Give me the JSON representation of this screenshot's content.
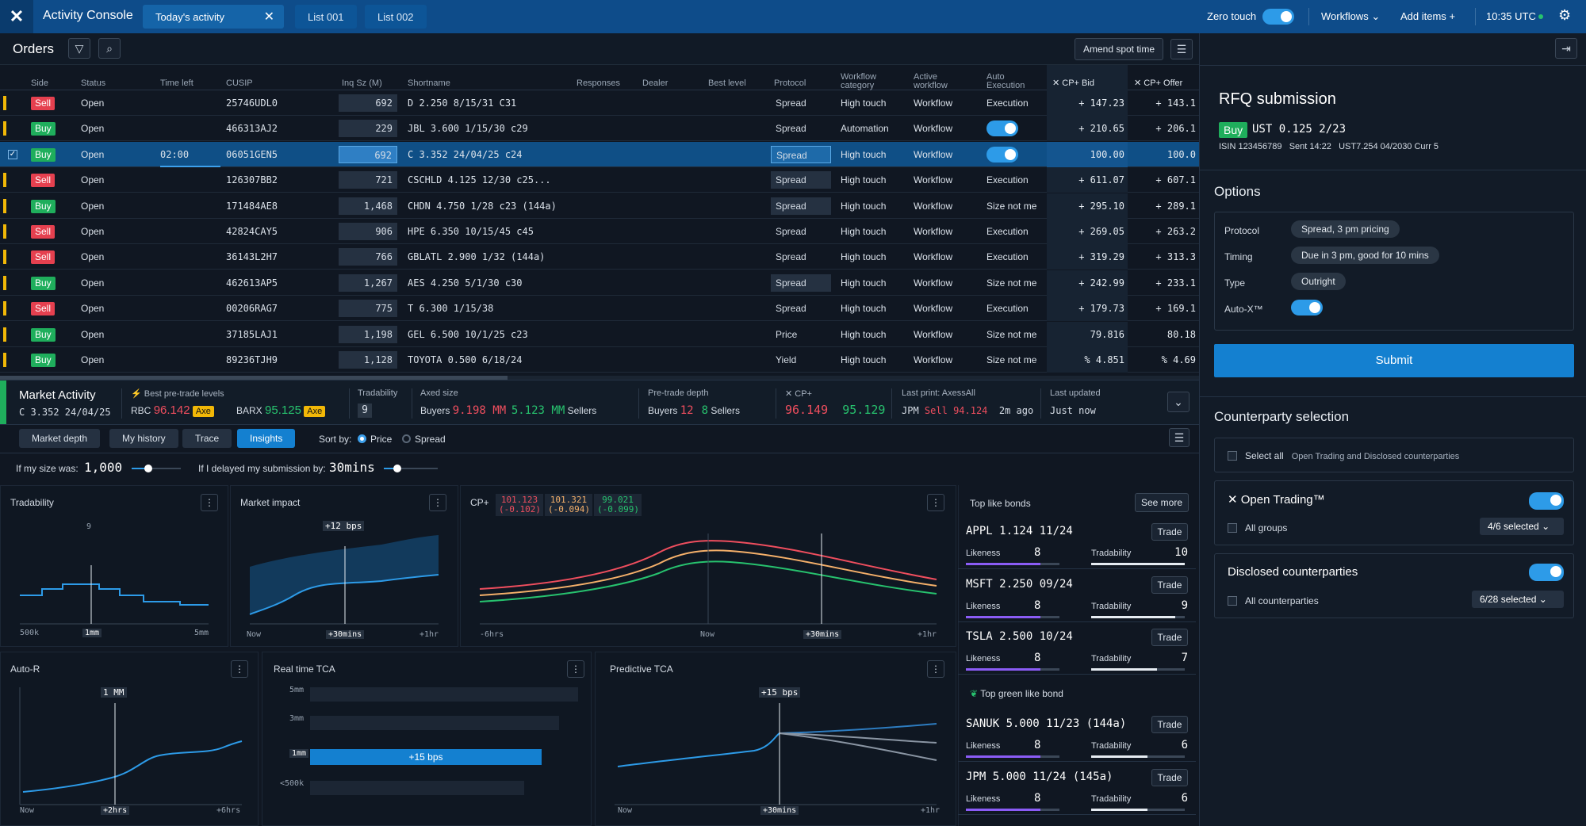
{
  "app": {
    "title": "Activity Console",
    "tabs": [
      {
        "label": "Today's activity"
      },
      {
        "label": "List 001"
      },
      {
        "label": "List 002"
      }
    ],
    "zero_touch": "Zero touch",
    "workflows": "Workflows",
    "add_items": "Add items",
    "time": "10:35 UTC"
  },
  "orders": {
    "title": "Orders",
    "amend": "Amend spot time",
    "columns": [
      "Side",
      "Status",
      "Time left",
      "CUSIP",
      "Inq Sz (M)",
      "Shortname",
      "Responses",
      "Dealer",
      "Best level",
      "Protocol",
      "Workflow category",
      "Active workflow",
      "Auto Execution",
      "CP+ Bid",
      "CP+ Offer"
    ],
    "rows": [
      {
        "side": "Sell",
        "status": "Open",
        "time_left": "",
        "cusip": "25746UDL0",
        "qty": "692",
        "shortname": "D 2.250 8/15/31 C31",
        "protocol": "Spread",
        "proto_boxed": false,
        "category": "High touch",
        "workflow": "Workflow",
        "auto": "Execution",
        "bid": "+ 147.23",
        "offer": "+ 143.1"
      },
      {
        "side": "Buy",
        "status": "Open",
        "time_left": "",
        "cusip": "466313AJ2",
        "qty": "229",
        "shortname": "JBL 3.600 1/15/30 c29",
        "protocol": "Spread",
        "proto_boxed": false,
        "category": "Automation",
        "workflow": "Workflow",
        "auto": "",
        "bid": "+ 210.65",
        "offer": "+ 206.1"
      },
      {
        "side": "Buy",
        "status": "Open",
        "time_left": "02:00",
        "cusip": "06051GEN5",
        "qty": "692",
        "shortname": "C 3.352 24/04/25 c24",
        "protocol": "Spread",
        "proto_boxed": true,
        "category": "High touch",
        "workflow": "Workflow",
        "auto": "",
        "bid": "100.00",
        "offer": "100.0"
      },
      {
        "side": "Sell",
        "status": "Open",
        "time_left": "",
        "cusip": "126307BB2",
        "qty": "721",
        "shortname": "CSCHLD 4.125 12/30 c25...",
        "protocol": "Spread",
        "proto_boxed": true,
        "category": "High touch",
        "workflow": "Workflow",
        "auto": "Execution",
        "bid": "+ 611.07",
        "offer": "+ 607.1"
      },
      {
        "side": "Buy",
        "status": "Open",
        "time_left": "",
        "cusip": "171484AE8",
        "qty": "1,468",
        "shortname": "CHDN 4.750 1/28 c23 (144a)",
        "protocol": "Spread",
        "proto_boxed": true,
        "category": "High touch",
        "workflow": "Workflow",
        "auto": "Size not me",
        "bid": "+ 295.10",
        "offer": "+ 289.1"
      },
      {
        "side": "Sell",
        "status": "Open",
        "time_left": "",
        "cusip": "42824CAY5",
        "qty": "906",
        "shortname": "HPE 6.350 10/15/45 c45",
        "protocol": "Spread",
        "proto_boxed": false,
        "category": "High touch",
        "workflow": "Workflow",
        "auto": "Execution",
        "bid": "+ 269.05",
        "offer": "+ 263.2"
      },
      {
        "side": "Sell",
        "status": "Open",
        "time_left": "",
        "cusip": "36143L2H7",
        "qty": "766",
        "shortname": "GBLATL 2.900 1/32 (144a)",
        "protocol": "Spread",
        "proto_boxed": false,
        "category": "High touch",
        "workflow": "Workflow",
        "auto": "Execution",
        "bid": "+ 319.29",
        "offer": "+ 313.3"
      },
      {
        "side": "Buy",
        "status": "Open",
        "time_left": "",
        "cusip": "462613AP5",
        "qty": "1,267",
        "shortname": "AES 4.250 5/1/30 c30",
        "protocol": "Spread",
        "proto_boxed": true,
        "category": "High touch",
        "workflow": "Workflow",
        "auto": "Size not me",
        "bid": "+ 242.99",
        "offer": "+ 233.1"
      },
      {
        "side": "Sell",
        "status": "Open",
        "time_left": "",
        "cusip": "00206RAG7",
        "qty": "775",
        "shortname": "T 6.300 1/15/38",
        "protocol": "Spread",
        "proto_boxed": false,
        "category": "High touch",
        "workflow": "Workflow",
        "auto": "Execution",
        "bid": "+ 179.73",
        "offer": "+ 169.1"
      },
      {
        "side": "Buy",
        "status": "Open",
        "time_left": "",
        "cusip": "37185LAJ1",
        "qty": "1,198",
        "shortname": "GEL 6.500 10/1/25 c23",
        "protocol": "Price",
        "proto_boxed": false,
        "category": "High touch",
        "workflow": "Workflow",
        "auto": "Size not me",
        "bid": "79.816",
        "offer": "80.18"
      },
      {
        "side": "Buy",
        "status": "Open",
        "time_left": "",
        "cusip": "89236TJH9",
        "qty": "1,128",
        "shortname": "TOYOTA 0.500 6/18/24",
        "protocol": "Yield",
        "proto_boxed": false,
        "category": "High touch",
        "workflow": "Workflow",
        "auto": "Size not me",
        "bid": "% 4.851",
        "offer": "% 4.69"
      }
    ]
  },
  "market": {
    "title": "Market Activity",
    "bond": "C 3.352 24/04/25",
    "best_label": "Best pre-trade levels",
    "rbc": "RBC",
    "rbc_val": "96.142",
    "barx": "BARX",
    "barx_val": "95.125",
    "axe": "Axe",
    "trad_label": "Tradability",
    "trad_val": "9",
    "axed_label": "Axed size",
    "buyers": "Buyers",
    "buy_amt": "9.198 MM",
    "sell_amt": "5.123 MM",
    "sellers": "Sellers",
    "depth_label": "Pre-trade depth",
    "depth_buy": "12",
    "depth_sell": "8",
    "cp_label": "CP+",
    "cp_bid": "96.149",
    "cp_offer": "95.129",
    "last_label": "Last print: AxessAll",
    "last_jpm": "JPM",
    "last_side": "Sell",
    "last_px": "94.124",
    "last_ago": "2m ago",
    "upd_label": "Last updated",
    "upd_val": "Just now"
  },
  "analysis": {
    "tabs": [
      "Market depth",
      "My history",
      "Trace",
      "Insights"
    ],
    "sort_by": "Sort by:",
    "sort_price": "Price",
    "sort_spread": "Spread",
    "size_label": "If my size was:",
    "size_val": "1,000",
    "delay_label": "If I delayed my submission by:",
    "delay_val": "30mins"
  },
  "charts": {
    "tradability": {
      "title": "Tradability",
      "marker": "9",
      "ticks": [
        "500k",
        "1mm",
        "5mm"
      ]
    },
    "impact": {
      "title": "Market impact",
      "marker": "+12 bps",
      "ticks": [
        "Now",
        "+30mins",
        "+1hr"
      ]
    },
    "cp": {
      "title": "CP+",
      "legend": [
        {
          "v": "101.123",
          "d": "(-0.102)"
        },
        {
          "v": "101.321",
          "d": "(-0.094)"
        },
        {
          "v": "99.021",
          "d": "(-0.099)"
        }
      ],
      "ticks": [
        "-6hrs",
        "Now",
        "+30mins",
        "+1hr"
      ]
    },
    "autor": {
      "title": "Auto-R",
      "marker": "1 MM",
      "ticks": [
        "Now",
        "+2hrs",
        "+6hrs"
      ]
    },
    "tca": {
      "title": "Real time TCA",
      "rows": [
        "5mm",
        "3mm",
        "1mm",
        "<500k"
      ],
      "bar": "+15 bps"
    },
    "ptca": {
      "title": "Predictive TCA",
      "marker": "+15 bps",
      "ticks": [
        "Now",
        "+30mins",
        "+1hr"
      ]
    },
    "colors": {
      "red": "#ef4e5e",
      "orange": "#f5b06a",
      "green": "#27c26e",
      "blue": "#2d9be8"
    }
  },
  "likes": {
    "title": "Top like bonds",
    "see_more": "See more",
    "green_title": "Top green like bond",
    "likeness": "Likeness",
    "tradability": "Tradability",
    "trade": "Trade",
    "items": [
      {
        "name": "APPL 1.124 11/24",
        "like": "8",
        "trad": "10"
      },
      {
        "name": "MSFT 2.250 09/24",
        "like": "8",
        "trad": "9"
      },
      {
        "name": "TSLA 2.500 10/24",
        "like": "8",
        "trad": "7"
      }
    ],
    "green": [
      {
        "name": "SANUK 5.000 11/23 (144a)",
        "like": "8",
        "trad": "6"
      },
      {
        "name": "JPM 5.000 11/24 (145a)",
        "like": "8",
        "trad": "6"
      }
    ]
  },
  "rfq": {
    "title": "RFQ submission",
    "side": "Buy",
    "bond": "UST 0.125 2/23",
    "isin": "ISIN 123456789",
    "sent": "Sent 14:22",
    "extra": "UST7.254 04/2030 Curr 5",
    "options": "Options",
    "protocol_l": "Protocol",
    "protocol_v": "Spread, 3 pm pricing",
    "timing_l": "Timing",
    "timing_v": "Due in 3 pm, good for 10 mins",
    "type_l": "Type",
    "type_v": "Outright",
    "autox_l": "Auto-X™",
    "submit": "Submit",
    "cp_title": "Counterparty selection",
    "select_all": "Select all",
    "select_all_sub": "Open Trading and Disclosed counterparties",
    "ot": "Open Trading™",
    "all_groups": "All groups",
    "groups_sel": "4/6 selected",
    "disclosed": "Disclosed counterparties",
    "all_cp": "All counterparties",
    "cp_sel": "6/28 selected"
  }
}
